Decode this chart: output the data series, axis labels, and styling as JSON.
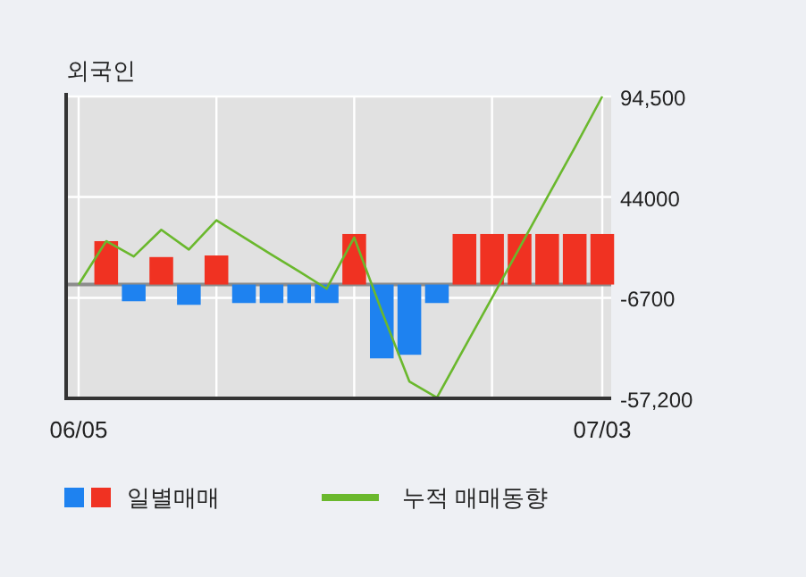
{
  "chart_data": {
    "type": "bar",
    "title": "외국인",
    "categories": [
      "06/05",
      null,
      null,
      null,
      null,
      null,
      null,
      null,
      null,
      null,
      null,
      null,
      null,
      null,
      null,
      null,
      null,
      null,
      null,
      "07/03"
    ],
    "series": [
      {
        "name": "일별매매",
        "axis": "y2",
        "colors": [
          "#f03222",
          "#f03222",
          "#1e82f0",
          "#f03222",
          "#1e82f0",
          "#f03222",
          "#1e82f0",
          "#1e82f0",
          "#1e82f0",
          "#1e82f0",
          "#f03222",
          "#1e82f0",
          "#1e82f0",
          "#1e82f0",
          "#f03222",
          "#f03222",
          "#f03222",
          "#f03222",
          "#f03222",
          "#f03222"
        ],
        "values": [
          null,
          21800,
          -8400,
          13800,
          -10200,
          14600,
          -9300,
          -9300,
          -9300,
          -9300,
          25400,
          -37100,
          -35300,
          -9300,
          25400,
          25400,
          25400,
          25400,
          25400,
          25400
        ]
      },
      {
        "name": "누적 매매동향",
        "type": "line",
        "axis": "y2",
        "color": "#6ab82d",
        "values": [
          0,
          21800,
          14100,
          27500,
          17600,
          32300,
          23600,
          15000,
          6600,
          -2100,
          23600,
          -13500,
          -48700,
          -56800,
          -31700,
          -6600,
          18500,
          43700,
          68800,
          94500
        ]
      }
    ],
    "y2lim": [
      -57200,
      94500
    ],
    "y2ticks": [
      {
        "value": 94500,
        "label": "94,500"
      },
      44000,
      -6700,
      {
        "value": -57200,
        "label": "-57,200"
      }
    ],
    "grid": true,
    "legend": "bottom"
  }
}
